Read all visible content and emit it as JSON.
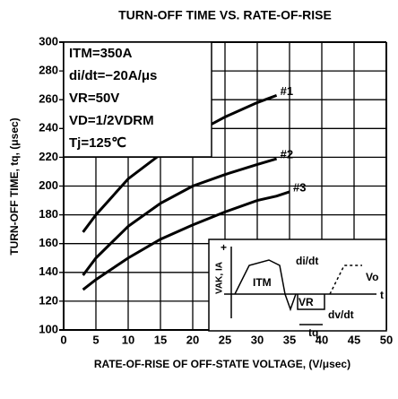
{
  "chart_data": {
    "type": "line",
    "title": "TURN-OFF TIME VS. RATE-OF-RISE",
    "x_label": "RATE-OF-RISE OF OFF-STATE VOLTAGE, (V/μsec)",
    "y_label": "TURN-OFF TIME, tq, (μsec)",
    "x": [
      3,
      5,
      10,
      15,
      20,
      25,
      30,
      33,
      35
    ],
    "series": [
      {
        "name": "#1",
        "color": "#000000",
        "values": [
          168,
          180,
          205,
          222,
          236,
          248,
          258,
          263,
          null
        ]
      },
      {
        "name": "#2",
        "color": "#000000",
        "values": [
          138,
          150,
          172,
          188,
          200,
          208,
          215,
          219,
          null
        ]
      },
      {
        "name": "#3",
        "color": "#000000",
        "values": [
          128,
          135,
          150,
          163,
          173,
          182,
          190,
          193,
          196
        ]
      }
    ],
    "conditions": [
      "ITM=350A",
      "di/dt=−20A/μs",
      "VR=50V",
      "VD=1/2VDRM",
      "Tj=125℃"
    ],
    "inset_labels": [
      "+",
      "VAK, IA",
      "di/dt",
      "Vo",
      "t",
      "ITM",
      "VR",
      "dv/dt",
      "tq"
    ],
    "xlim": [
      0,
      50
    ],
    "xticks": [
      0,
      5,
      10,
      15,
      20,
      25,
      30,
      35,
      40,
      45,
      50
    ],
    "ylim": [
      100,
      300
    ],
    "yticks": [
      100,
      120,
      140,
      160,
      180,
      200,
      220,
      240,
      260,
      280,
      300
    ],
    "grid": true
  }
}
